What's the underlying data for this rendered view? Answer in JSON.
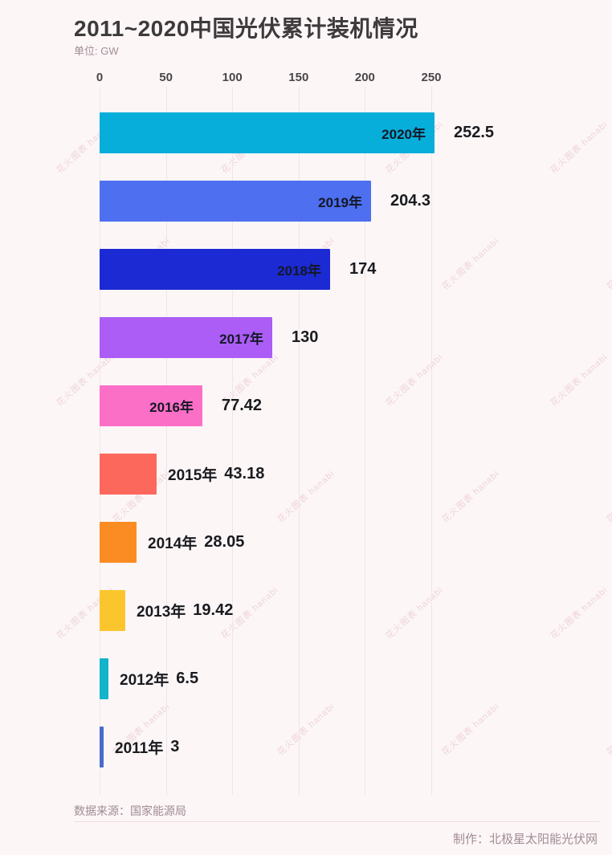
{
  "title": "2011~2020中国光伏累计装机情况",
  "subtitle": "单位: GW",
  "axis": {
    "ticks": [
      "0",
      "50",
      "100",
      "150",
      "200",
      "250"
    ]
  },
  "chart_data": {
    "type": "bar",
    "orientation": "horizontal",
    "title": "2011~2020中国光伏累计装机情况",
    "unit_label": "单位: GW",
    "categories": [
      "2020年",
      "2019年",
      "2018年",
      "2017年",
      "2016年",
      "2015年",
      "2014年",
      "2013年",
      "2012年",
      "2011年"
    ],
    "values": [
      252.5,
      204.3,
      174,
      130,
      77.42,
      43.18,
      28.05,
      19.42,
      6.5,
      3
    ],
    "xlim": [
      0,
      250
    ],
    "xticks": [
      0,
      50,
      100,
      150,
      200,
      250
    ],
    "grid": "vertical",
    "legend": "none"
  },
  "bars": [
    {
      "year": "2020年",
      "value": 252.5,
      "display": "252.5",
      "color": "#07aeda",
      "label_inside": true
    },
    {
      "year": "2019年",
      "value": 204.3,
      "display": "204.3",
      "color": "#4d6ff0",
      "label_inside": true
    },
    {
      "year": "2018年",
      "value": 174,
      "display": "174",
      "color": "#1c2ad4",
      "label_inside": true
    },
    {
      "year": "2017年",
      "value": 130,
      "display": "130",
      "color": "#ab5df6",
      "label_inside": true
    },
    {
      "year": "2016年",
      "value": 77.42,
      "display": "77.42",
      "color": "#fc6fc7",
      "label_inside": true
    },
    {
      "year": "2015年",
      "value": 43.18,
      "display": "43.18",
      "color": "#fc685c",
      "label_inside": false
    },
    {
      "year": "2014年",
      "value": 28.05,
      "display": "28.05",
      "color": "#fa8c23",
      "label_inside": false
    },
    {
      "year": "2013年",
      "value": 19.42,
      "display": "19.42",
      "color": "#fbc52d",
      "label_inside": false
    },
    {
      "year": "2012年",
      "value": 6.5,
      "display": "6.5",
      "color": "#12b4ca",
      "label_inside": false
    },
    {
      "year": "2011年",
      "value": 3,
      "display": "3",
      "color": "#4a6ace",
      "label_inside": false
    }
  ],
  "footer": {
    "source": "数据来源：国家能源局",
    "credit": "制作：北极星太阳能光伏网"
  },
  "watermark": {
    "text": "花火图表 hanabi"
  },
  "colors": {
    "background": "#fcf6f7",
    "gridline": "#f1e5e8",
    "title_text": "#3d3a3c",
    "muted_text": "#a18b94",
    "value_text": "#1a1b1f"
  }
}
